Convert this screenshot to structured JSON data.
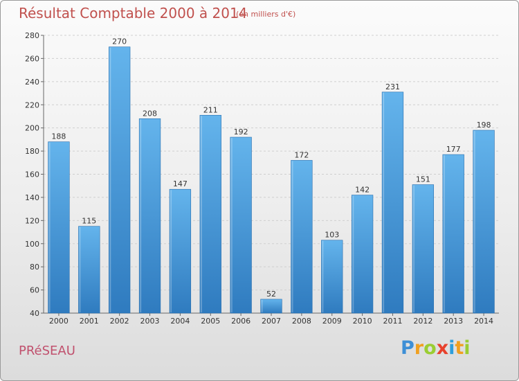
{
  "title": "Résultat Comptable 2000 à 2014",
  "subtitle": "(en milliers d'€)",
  "town": "PRéSEAU",
  "logo": {
    "letters": [
      "P",
      "r",
      "o",
      "x",
      "i",
      "t",
      "i"
    ],
    "colors": [
      "#3d8fd6",
      "#f0a020",
      "#9acd32",
      "#e8412c",
      "#2e9edb",
      "#f0a020",
      "#9acd32"
    ]
  },
  "colors": {
    "bar_top": "#64b4ec",
    "bar_bottom": "#2f7bbf",
    "title": "#c0504d"
  },
  "chart_data": {
    "type": "bar",
    "categories": [
      "2000",
      "2001",
      "2002",
      "2003",
      "2004",
      "2005",
      "2006",
      "2007",
      "2008",
      "2009",
      "2010",
      "2011",
      "2012",
      "2013",
      "2014"
    ],
    "values": [
      188,
      115,
      270,
      208,
      147,
      211,
      192,
      52,
      172,
      103,
      142,
      231,
      151,
      177,
      198
    ],
    "ylim": [
      40,
      280
    ],
    "yticks": [
      40,
      60,
      80,
      100,
      120,
      140,
      160,
      180,
      200,
      220,
      240,
      260,
      280
    ],
    "grid": true
  }
}
